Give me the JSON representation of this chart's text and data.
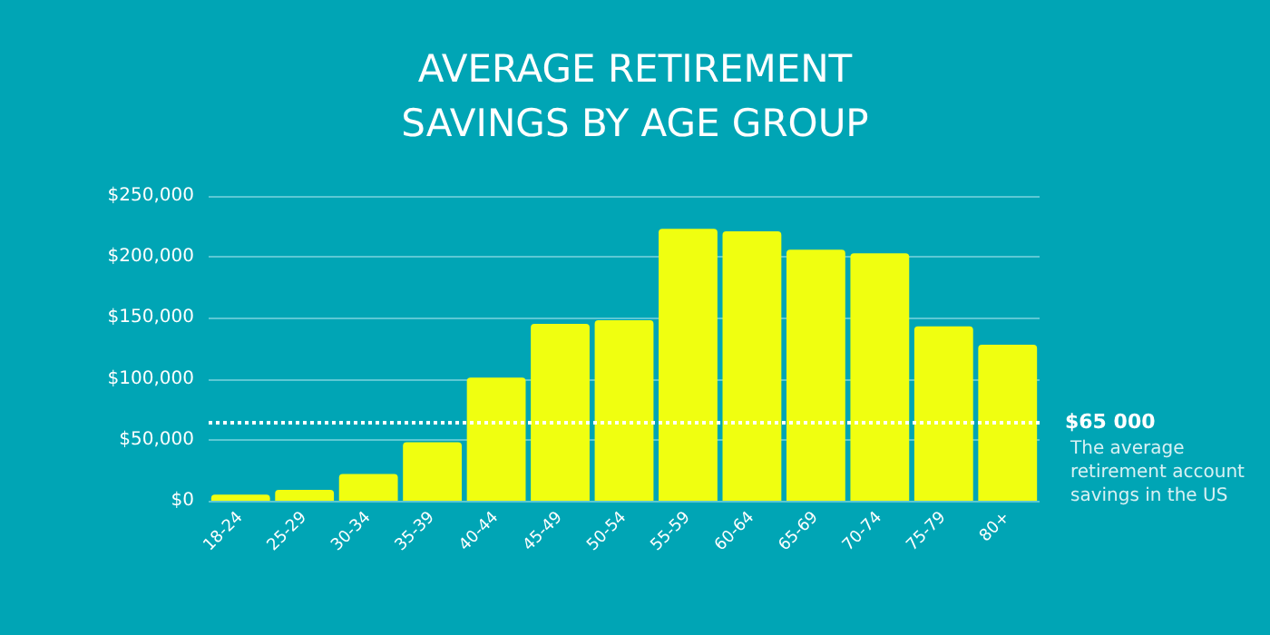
{
  "chart_data": {
    "type": "bar",
    "title": "AVERAGE RETIREMENT\nSAVINGS BY AGE GROUP",
    "categories": [
      "18-24",
      "25-29",
      "30-34",
      "35-39",
      "40-44",
      "45-49",
      "50-54",
      "55-59",
      "60-64",
      "65-69",
      "70-74",
      "75-79",
      "80+"
    ],
    "values": [
      5000,
      9000,
      22000,
      48000,
      101000,
      145000,
      148000,
      223000,
      221000,
      206000,
      203000,
      143000,
      128000
    ],
    "color": "#f0ff10",
    "ylim": [
      0,
      250000
    ],
    "yticks": [
      {
        "value": 0,
        "label": "$0"
      },
      {
        "value": 50000,
        "label": "$50,000"
      },
      {
        "value": 100000,
        "label": "$100,000"
      },
      {
        "value": 150000,
        "label": "$150,000"
      },
      {
        "value": 200000,
        "label": "$200,000"
      },
      {
        "value": 250000,
        "label": "$250,000"
      }
    ],
    "grid": "y",
    "ref_lines": [
      {
        "axis": "y",
        "value": 65000,
        "label": "$65 000",
        "color": "#ffffff",
        "line_style": "dotted"
      }
    ],
    "annotations": [
      "The average\nretirement account\nsavings in the US"
    ]
  }
}
